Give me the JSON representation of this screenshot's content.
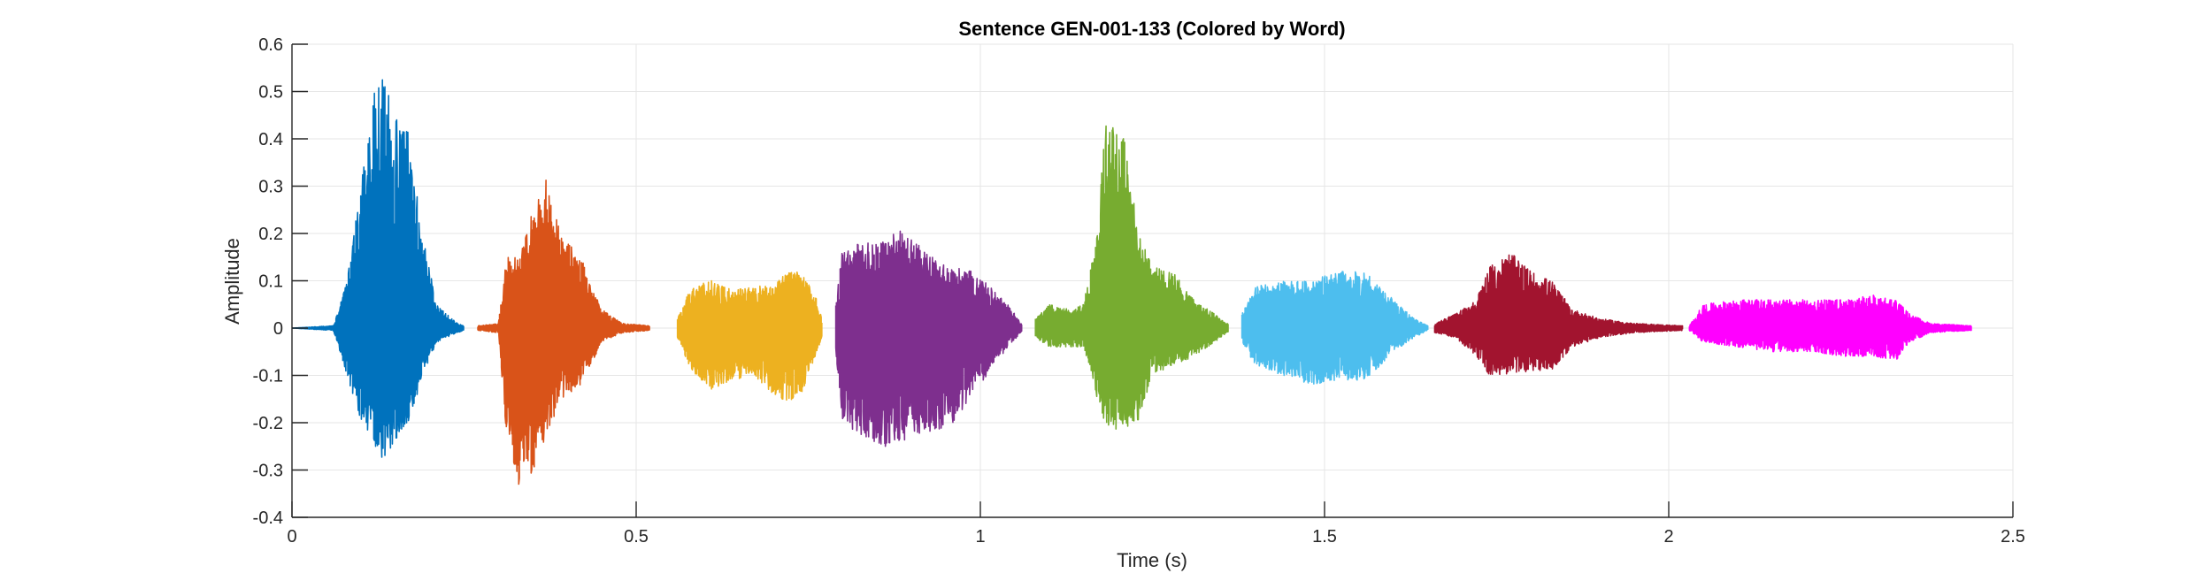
{
  "chart_data": {
    "type": "line",
    "title": "Sentence GEN-001-133 (Colored by Word)",
    "xlabel": "Time (s)",
    "ylabel": "Amplitude",
    "xlim": [
      0,
      2.5
    ],
    "ylim": [
      -0.4,
      0.6
    ],
    "xticks": [
      0,
      0.5,
      1,
      1.5,
      2,
      2.5
    ],
    "xtick_labels": [
      "0",
      "0.5",
      "1",
      "1.5",
      "2",
      "2.5"
    ],
    "yticks": [
      -0.4,
      -0.3,
      -0.2,
      -0.1,
      0,
      0.1,
      0.2,
      0.3,
      0.4,
      0.5,
      0.6
    ],
    "ytick_labels": [
      "-0.4",
      "-0.3",
      "-0.2",
      "-0.1",
      "0",
      "0.1",
      "0.2",
      "0.3",
      "0.4",
      "0.5",
      "0.6"
    ],
    "grid": true,
    "legend": false,
    "series": [
      {
        "color": "#0072BD",
        "x_start": 0.0,
        "x_end": 0.25,
        "envelope": {
          "t": [
            0.0,
            0.06,
            0.08,
            0.1,
            0.12,
            0.13,
            0.15,
            0.17,
            0.19,
            0.21,
            0.24,
            0.25
          ],
          "max": [
            0.0,
            0.005,
            0.1,
            0.3,
            0.5,
            0.54,
            0.45,
            0.42,
            0.2,
            0.05,
            0.01,
            0.005
          ],
          "min": [
            0.0,
            -0.005,
            -0.1,
            -0.2,
            -0.25,
            -0.28,
            -0.24,
            -0.2,
            -0.1,
            -0.03,
            -0.01,
            -0.005
          ]
        }
      },
      {
        "color": "#D95319",
        "x_start": 0.27,
        "x_end": 0.52,
        "envelope": {
          "t": [
            0.27,
            0.3,
            0.31,
            0.33,
            0.35,
            0.37,
            0.39,
            0.42,
            0.45,
            0.48,
            0.52
          ],
          "max": [
            0.005,
            0.01,
            0.15,
            0.15,
            0.25,
            0.32,
            0.2,
            0.15,
            0.04,
            0.01,
            0.005
          ],
          "min": [
            -0.005,
            -0.01,
            -0.2,
            -0.35,
            -0.3,
            -0.23,
            -0.15,
            -0.12,
            -0.03,
            -0.01,
            -0.005
          ]
        }
      },
      {
        "color": "#EDB120",
        "x_start": 0.56,
        "x_end": 0.77,
        "envelope": {
          "t": [
            0.56,
            0.58,
            0.61,
            0.64,
            0.67,
            0.7,
            0.72,
            0.74,
            0.76,
            0.77
          ],
          "max": [
            0.02,
            0.09,
            0.1,
            0.08,
            0.09,
            0.09,
            0.12,
            0.12,
            0.07,
            0.02
          ],
          "min": [
            -0.02,
            -0.09,
            -0.13,
            -0.11,
            -0.1,
            -0.14,
            -0.16,
            -0.14,
            -0.06,
            -0.02
          ]
        }
      },
      {
        "color": "#7E2F8E",
        "x_start": 0.79,
        "x_end": 1.06,
        "envelope": {
          "t": [
            0.79,
            0.8,
            0.83,
            0.86,
            0.88,
            0.9,
            0.93,
            0.96,
            0.99,
            1.02,
            1.04,
            1.06
          ],
          "max": [
            0.05,
            0.17,
            0.18,
            0.19,
            0.21,
            0.19,
            0.15,
            0.13,
            0.12,
            0.08,
            0.05,
            0.01
          ],
          "min": [
            -0.05,
            -0.2,
            -0.23,
            -0.25,
            -0.25,
            -0.23,
            -0.22,
            -0.2,
            -0.14,
            -0.08,
            -0.04,
            -0.01
          ]
        }
      },
      {
        "color": "#77AC30",
        "x_start": 1.08,
        "x_end": 1.36,
        "envelope": {
          "t": [
            1.08,
            1.1,
            1.13,
            1.15,
            1.17,
            1.18,
            1.19,
            1.21,
            1.23,
            1.25,
            1.28,
            1.31,
            1.34,
            1.36
          ],
          "max": [
            0.02,
            0.05,
            0.04,
            0.05,
            0.22,
            0.42,
            0.47,
            0.4,
            0.2,
            0.13,
            0.12,
            0.06,
            0.03,
            0.01
          ],
          "min": [
            -0.02,
            -0.04,
            -0.04,
            -0.04,
            -0.15,
            -0.2,
            -0.22,
            -0.21,
            -0.2,
            -0.1,
            -0.08,
            -0.06,
            -0.03,
            -0.01
          ]
        }
      },
      {
        "color": "#4DBEEE",
        "x_start": 1.38,
        "x_end": 1.65,
        "envelope": {
          "t": [
            1.38,
            1.4,
            1.44,
            1.48,
            1.52,
            1.56,
            1.6,
            1.63,
            1.65
          ],
          "max": [
            0.03,
            0.09,
            0.1,
            0.1,
            0.12,
            0.12,
            0.06,
            0.02,
            0.005
          ],
          "min": [
            -0.03,
            -0.08,
            -0.1,
            -0.12,
            -0.11,
            -0.11,
            -0.05,
            -0.02,
            -0.005
          ]
        }
      },
      {
        "color": "#A2142F",
        "x_start": 1.66,
        "x_end": 2.02,
        "envelope": {
          "t": [
            1.66,
            1.69,
            1.72,
            1.74,
            1.77,
            1.8,
            1.83,
            1.86,
            1.9,
            1.95,
            2.02
          ],
          "max": [
            0.01,
            0.03,
            0.06,
            0.13,
            0.16,
            0.12,
            0.1,
            0.04,
            0.02,
            0.01,
            0.005
          ],
          "min": [
            -0.01,
            -0.02,
            -0.06,
            -0.1,
            -0.1,
            -0.09,
            -0.09,
            -0.04,
            -0.02,
            -0.01,
            -0.005
          ]
        }
      },
      {
        "color": "#FF00FF",
        "x_start": 2.03,
        "x_end": 2.44,
        "envelope": {
          "t": [
            2.03,
            2.05,
            2.1,
            2.15,
            2.2,
            2.25,
            2.3,
            2.33,
            2.35,
            2.38,
            2.44
          ],
          "max": [
            0.005,
            0.05,
            0.06,
            0.06,
            0.06,
            0.06,
            0.07,
            0.06,
            0.03,
            0.01,
            0.005
          ],
          "min": [
            -0.005,
            -0.03,
            -0.04,
            -0.05,
            -0.05,
            -0.06,
            -0.06,
            -0.07,
            -0.03,
            -0.01,
            -0.005
          ]
        }
      }
    ]
  }
}
